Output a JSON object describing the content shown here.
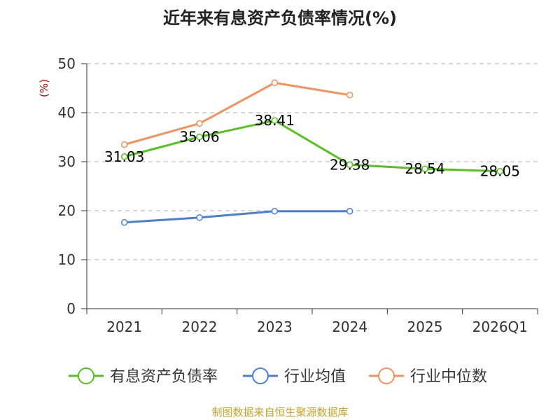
{
  "chart_data": {
    "type": "line",
    "title": "近年来有息资产负债率情况(%)",
    "ylabel": "(%)",
    "xlabel": "",
    "ylim": [
      0,
      50
    ],
    "yticks": [
      "0",
      "10",
      "20",
      "30",
      "40",
      "50"
    ],
    "categories": [
      "2021",
      "2022",
      "2023",
      "2024",
      "2025",
      "2026Q1"
    ],
    "grid": true,
    "legend_position": "bottom",
    "series": [
      {
        "name": "有息资产负债率",
        "color": "#52c41a",
        "values": [
          31.03,
          35.06,
          38.41,
          29.38,
          28.54,
          28.05
        ],
        "labels": [
          "31.03",
          "35.06",
          "38.41",
          "29.38",
          "28.54",
          "28.05"
        ]
      },
      {
        "name": "行业均值",
        "color": "#4a7fd6",
        "values": [
          17.6,
          18.6,
          19.9,
          19.9,
          null,
          null
        ]
      },
      {
        "name": "行业中位数",
        "color": "#f4915c",
        "values": [
          33.5,
          37.8,
          46.1,
          43.6,
          null,
          null
        ]
      }
    ],
    "source": "制图数据来自恒生聚源数据库"
  }
}
